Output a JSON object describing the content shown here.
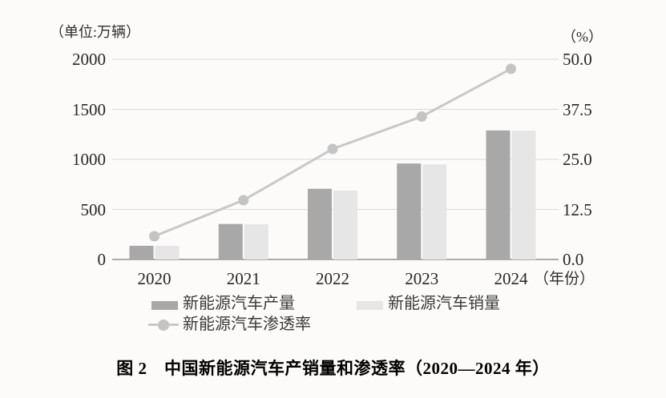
{
  "figure": {
    "unit_left": "（单位:万辆）",
    "unit_right": "（%）",
    "x_axis_unit": "（年份）",
    "caption": "图 2　中国新能源汽车产销量和渗透率（2020—2024 年）"
  },
  "legend": [
    {
      "label": "新能源汽车产量",
      "swatch": "dark-gray-bar"
    },
    {
      "label": "新能源汽车销量",
      "swatch": "light-gray-bar"
    },
    {
      "label": "新能源汽车渗透率",
      "swatch": "gray-line-with-round-marker"
    }
  ],
  "colors": {
    "production_bar": "#a8a8a8",
    "sales_bar": "#e6e6e6",
    "penetration_line": "#c8c8c8",
    "penetration_marker": "#c4c4c4",
    "gridline": "#d9d9d9",
    "axis_line": "#ababab",
    "text": "#2b2b2b",
    "background": "#fcfbfa"
  },
  "chart_data": {
    "type": "bar+line",
    "title": "图 2　中国新能源汽车产销量和渗透率（2020—2024 年）",
    "categories": [
      "2020",
      "2021",
      "2022",
      "2023",
      "2024"
    ],
    "series": [
      {
        "name": "新能源汽车产量",
        "type": "bar",
        "axis": "left",
        "values": [
          136.6,
          354.5,
          705.8,
          958.7,
          1288.8
        ]
      },
      {
        "name": "新能源汽车销量",
        "type": "bar",
        "axis": "left",
        "values": [
          136.7,
          352.1,
          688.7,
          949.5,
          1286.6
        ]
      },
      {
        "name": "新能源汽车渗透率",
        "type": "line",
        "axis": "right",
        "values": [
          5.8,
          14.8,
          27.6,
          35.7,
          47.6
        ]
      }
    ],
    "left_axis": {
      "title": "（单位:万辆）",
      "range": [
        0,
        2000
      ],
      "ticks_top_to_bottom": [
        "2000",
        "1500",
        "1000",
        "500",
        "0"
      ]
    },
    "right_axis": {
      "title": "（%）",
      "range": [
        0,
        50
      ],
      "ticks_top_to_bottom": [
        "50.0",
        "37.5",
        "25.0",
        "12.5",
        "0.0"
      ]
    },
    "x_axis": {
      "title": "（年份）"
    },
    "grid": true,
    "legend_position": "bottom"
  }
}
